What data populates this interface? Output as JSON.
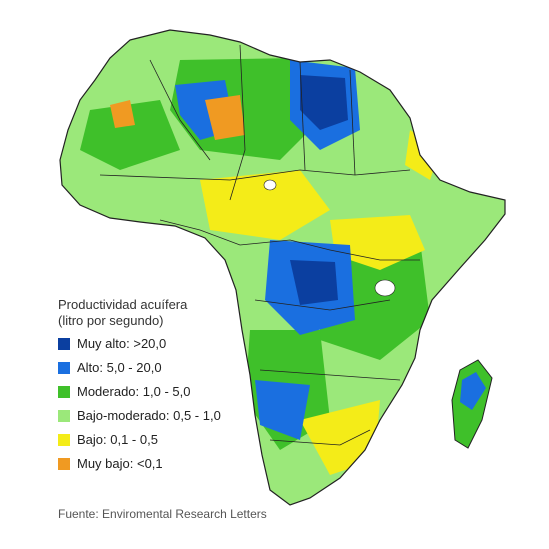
{
  "map": {
    "legend_title_line1": "Productividad acuífera",
    "legend_title_line2": "(litro por segundo)",
    "legend": [
      {
        "label": "Muy alto: >20,0",
        "color": "#0b3fa0"
      },
      {
        "label": "Alto: 5,0 - 20,0",
        "color": "#1a6fe0"
      },
      {
        "label": "Moderado: 1,0 - 5,0",
        "color": "#3fc02a"
      },
      {
        "label": "Bajo-moderado: 0,5 - 1,0",
        "color": "#9be87a"
      },
      {
        "label": "Bajo: 0,1 - 0,5",
        "color": "#f4ec18"
      },
      {
        "label": "Muy bajo: <0,1",
        "color": "#f09a22"
      }
    ],
    "source": "Fuente: Enviromental Research Letters"
  }
}
